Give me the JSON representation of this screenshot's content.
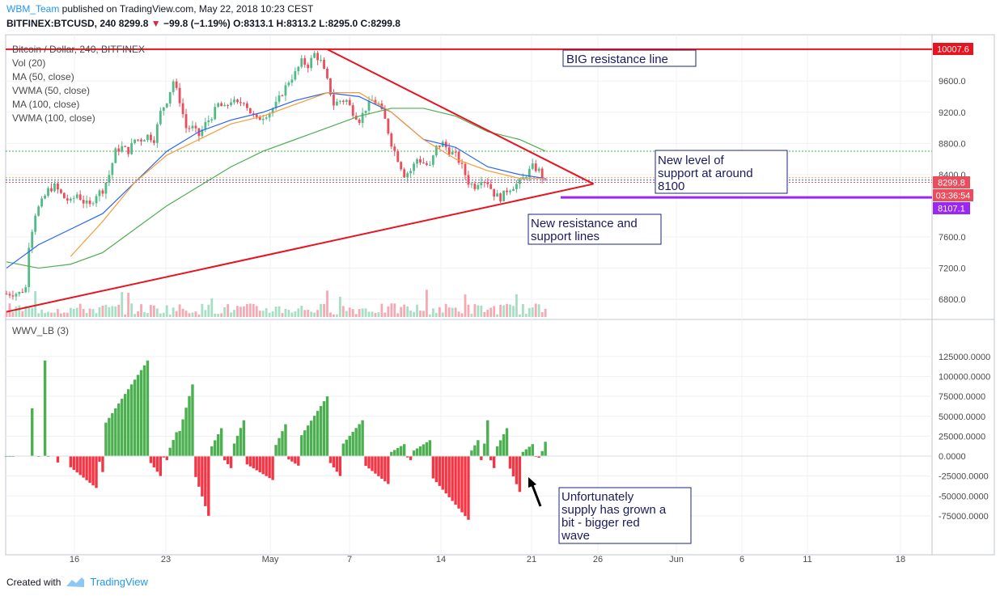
{
  "header": {
    "user": "WBM_Team",
    "published": " published on TradingView.com, May 22, 2018 10:23 CEST",
    "symbol": "BITFINEX:BTCUSD, 240",
    "last": "8299.8",
    "change": "−99.8 (−1.19%)",
    "open": "O:8313.1",
    "high": "H:8313.2",
    "low": "L:8295.0",
    "close": "C:8299.8"
  },
  "legend": [
    "Bitcoin / Dollar, 240, BITFINEX",
    "Vol (20)",
    "MA (50, close)",
    "VWMA (50, close)",
    "MA (100, close)",
    "VWMA (100, close)"
  ],
  "indicator_label": "WWV_LB (3)",
  "price_axis": {
    "ticks": [
      "9600.0",
      "9200.0",
      "8800.0",
      "8400.0",
      "7600.0",
      "7200.0",
      "6800.0"
    ],
    "tick_values": [
      9600,
      9200,
      8800,
      8400,
      7600,
      7200,
      6800
    ],
    "badges": {
      "resistance": "10007.6",
      "last": "8299.8",
      "countdown": "03:36:54",
      "support": "8107.1"
    }
  },
  "indicator_axis": {
    "ticks": [
      "125000.0000",
      "100000.0000",
      "75000.0000",
      "50000.0000",
      "25000.0000",
      "0.0000",
      "-25000.0000",
      "-50000.0000",
      "-75000.0000"
    ],
    "tick_values": [
      125000,
      100000,
      75000,
      50000,
      25000,
      0,
      -25000,
      -50000,
      -75000
    ]
  },
  "time_axis": {
    "labels": [
      "16",
      "23",
      "May",
      "7",
      "14",
      "21",
      "26",
      "Jun",
      "6",
      "11",
      "18"
    ]
  },
  "annotations": {
    "big_resistance": "BIG resistance line",
    "new_support": [
      "New level of",
      "support at around",
      "8100"
    ],
    "new_resistance": [
      "New resistance and",
      "support lines"
    ],
    "supply": [
      "Unfortunately",
      "supply has grown a",
      "bit - bigger red",
      "wave"
    ]
  },
  "footer": {
    "created": "Created with",
    "brand": "TradingView"
  },
  "colors": {
    "up": "#53b987",
    "down": "#eb4d5c",
    "wave_up": "#4caf50",
    "wave_down": "#f23645",
    "ma50": "#f89a33",
    "vwma50": "#2962ff",
    "ma100": "#4caf50",
    "trend": "#e8131f",
    "support": "#9c27f0"
  },
  "chart_data": {
    "type": "candlestick",
    "symbol": "BITFINEX:BTCUSD",
    "interval": "240",
    "price_range": [
      6640,
      10100
    ],
    "close_path": [
      [
        0,
        6870
      ],
      [
        4,
        6880
      ],
      [
        6,
        6950
      ],
      [
        7,
        7500
      ],
      [
        9,
        7900
      ],
      [
        11,
        8050
      ],
      [
        13,
        8200
      ],
      [
        15,
        8250
      ],
      [
        18,
        8100
      ],
      [
        20,
        8050
      ],
      [
        22,
        8150
      ],
      [
        24,
        8050
      ],
      [
        26,
        8000
      ],
      [
        28,
        8150
      ],
      [
        30,
        8200
      ],
      [
        32,
        8400
      ],
      [
        34,
        8700
      ],
      [
        36,
        8750
      ],
      [
        38,
        8700
      ],
      [
        40,
        8850
      ],
      [
        42,
        8850
      ],
      [
        44,
        8900
      ],
      [
        46,
        8850
      ],
      [
        48,
        9200
      ],
      [
        50,
        9350
      ],
      [
        52,
        9600
      ],
      [
        54,
        9350
      ],
      [
        56,
        9000
      ],
      [
        58,
        9000
      ],
      [
        60,
        8900
      ],
      [
        62,
        9050
      ],
      [
        64,
        9150
      ],
      [
        66,
        9300
      ],
      [
        68,
        9250
      ],
      [
        70,
        9350
      ],
      [
        72,
        9300
      ],
      [
        74,
        9350
      ],
      [
        76,
        9200
      ],
      [
        78,
        9100
      ],
      [
        80,
        9150
      ],
      [
        82,
        9200
      ],
      [
        84,
        9300
      ],
      [
        86,
        9450
      ],
      [
        88,
        9600
      ],
      [
        90,
        9700
      ],
      [
        92,
        9850
      ],
      [
        94,
        9800
      ],
      [
        96,
        9950
      ],
      [
        98,
        9850
      ],
      [
        100,
        9600
      ],
      [
        102,
        9300
      ],
      [
        104,
        9350
      ],
      [
        106,
        9350
      ],
      [
        108,
        9200
      ],
      [
        110,
        9100
      ],
      [
        112,
        9250
      ],
      [
        114,
        9350
      ],
      [
        116,
        9300
      ],
      [
        118,
        9100
      ],
      [
        120,
        8800
      ],
      [
        122,
        8600
      ],
      [
        124,
        8400
      ],
      [
        126,
        8450
      ],
      [
        128,
        8600
      ],
      [
        130,
        8550
      ],
      [
        132,
        8500
      ],
      [
        134,
        8750
      ],
      [
        136,
        8800
      ],
      [
        138,
        8700
      ],
      [
        140,
        8650
      ],
      [
        142,
        8500
      ],
      [
        144,
        8300
      ],
      [
        146,
        8250
      ],
      [
        148,
        8350
      ],
      [
        150,
        8300
      ],
      [
        152,
        8150
      ],
      [
        154,
        8100
      ],
      [
        156,
        8200
      ],
      [
        158,
        8250
      ],
      [
        160,
        8300
      ],
      [
        162,
        8400
      ],
      [
        164,
        8500
      ],
      [
        166,
        8450
      ],
      [
        168,
        8299.8
      ]
    ],
    "ma50": [
      [
        20,
        7350
      ],
      [
        30,
        7800
      ],
      [
        40,
        8300
      ],
      [
        50,
        8650
      ],
      [
        60,
        8850
      ],
      [
        70,
        9050
      ],
      [
        80,
        9150
      ],
      [
        90,
        9300
      ],
      [
        100,
        9450
      ],
      [
        110,
        9450
      ],
      [
        120,
        9200
      ],
      [
        130,
        8850
      ],
      [
        140,
        8600
      ],
      [
        150,
        8450
      ],
      [
        160,
        8350
      ],
      [
        168,
        8350
      ]
    ],
    "vwma50": [
      [
        0,
        7200
      ],
      [
        10,
        7500
      ],
      [
        20,
        7700
      ],
      [
        30,
        7900
      ],
      [
        40,
        8300
      ],
      [
        50,
        8700
      ],
      [
        60,
        8950
      ],
      [
        70,
        9100
      ],
      [
        80,
        9200
      ],
      [
        90,
        9350
      ],
      [
        100,
        9450
      ],
      [
        110,
        9400
      ],
      [
        120,
        9200
      ],
      [
        130,
        8850
      ],
      [
        140,
        8750
      ],
      [
        150,
        8500
      ],
      [
        160,
        8400
      ],
      [
        168,
        8350
      ]
    ],
    "ma100": [
      [
        0,
        7280
      ],
      [
        10,
        7200
      ],
      [
        20,
        7250
      ],
      [
        30,
        7400
      ],
      [
        40,
        7700
      ],
      [
        50,
        8000
      ],
      [
        60,
        8250
      ],
      [
        70,
        8500
      ],
      [
        80,
        8700
      ],
      [
        90,
        8850
      ],
      [
        100,
        9000
      ],
      [
        110,
        9150
      ],
      [
        120,
        9250
      ],
      [
        130,
        9250
      ],
      [
        140,
        9150
      ],
      [
        150,
        8950
      ],
      [
        160,
        8850
      ],
      [
        168,
        8700
      ]
    ],
    "trend_lines": [
      {
        "name": "resistance",
        "from": [
          100,
          10007
        ],
        "to": [
          183,
          8280
        ]
      },
      {
        "name": "support",
        "from": [
          0,
          6640
        ],
        "to": [
          183,
          8280
        ]
      }
    ],
    "horizontal_levels": [
      10007.6,
      8107.1,
      8700,
      8360,
      8330,
      8299.8
    ],
    "wwv_waves": [
      [
        0,
        2,
        5
      ],
      [
        8,
        60000
      ],
      [
        10,
        5
      ],
      [
        12,
        120000
      ],
      [
        13,
        0
      ],
      [
        14,
        7,
        -15000
      ],
      [
        16,
        -8000
      ],
      [
        18,
        1,
        25000
      ],
      [
        20,
        28,
        -40000
      ],
      [
        29,
        30,
        -20000
      ],
      [
        31,
        44,
        120000
      ],
      [
        45,
        48,
        -25000
      ],
      [
        49,
        50,
        -5000
      ],
      [
        51,
        53,
        30000
      ],
      [
        54,
        58,
        90000
      ],
      [
        59,
        63,
        -75000
      ],
      [
        64,
        67,
        35000
      ],
      [
        68,
        70,
        -15000
      ],
      [
        71,
        74,
        45000
      ],
      [
        75,
        83,
        -30000
      ],
      [
        84,
        87,
        40000
      ],
      [
        88,
        91,
        -12000
      ],
      [
        92,
        100,
        75000
      ],
      [
        101,
        104,
        -25000
      ],
      [
        105,
        111,
        45000
      ],
      [
        112,
        119,
        -35000
      ],
      [
        120,
        124,
        15000
      ],
      [
        125,
        126,
        -5000
      ],
      [
        127,
        132,
        20000
      ],
      [
        133,
        144,
        -80000
      ],
      [
        145,
        147,
        20000
      ],
      [
        148,
        148,
        -5000
      ],
      [
        149,
        150,
        45000
      ],
      [
        151,
        152,
        -15000
      ],
      [
        153,
        156,
        35000
      ],
      [
        157,
        160,
        -45000
      ],
      [
        161,
        164,
        15000
      ],
      [
        165,
        166,
        -2000
      ],
      [
        167,
        168,
        18000
      ]
    ]
  }
}
